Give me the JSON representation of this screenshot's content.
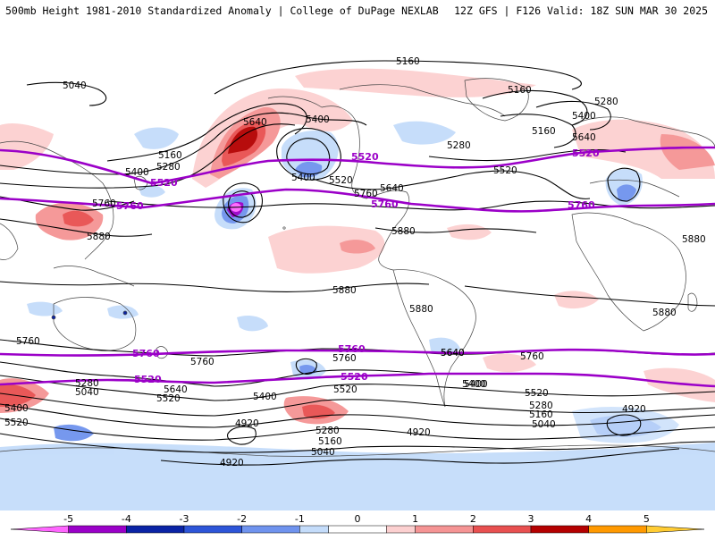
{
  "header": {
    "title": "500mb Height 1981-2010 Standardized Anomaly | College of DuPage NEXLAB",
    "run_info": "12Z GFS | F126 Valid: 18Z SUN MAR 30 2025"
  },
  "colors": {
    "climatology_line": "#9b00c8",
    "height_contour": "#000000",
    "coastline": "#444444"
  },
  "colorbar": {
    "ticks": [
      "-5",
      "-4",
      "-3",
      "-2",
      "-1",
      "0",
      "1",
      "2",
      "3",
      "4",
      "5"
    ],
    "bins": [
      {
        "range": [
          -6,
          -5
        ],
        "color": "#ff66ff"
      },
      {
        "range": [
          -5,
          -4
        ],
        "color": "#9a00c8"
      },
      {
        "range": [
          -4,
          -3
        ],
        "color": "#0a23a5"
      },
      {
        "range": [
          -3,
          -2
        ],
        "color": "#2d55d8"
      },
      {
        "range": [
          -2,
          -1
        ],
        "color": "#6f93ee"
      },
      {
        "range": [
          -1,
          -0.5
        ],
        "color": "#c4dcfa"
      },
      {
        "range": [
          -0.5,
          0.5
        ],
        "color": "#ffffff"
      },
      {
        "range": [
          0.5,
          1
        ],
        "color": "#fcd0d0"
      },
      {
        "range": [
          1,
          2
        ],
        "color": "#f59494"
      },
      {
        "range": [
          2,
          3
        ],
        "color": "#e85050"
      },
      {
        "range": [
          3,
          4
        ],
        "color": "#b40000"
      },
      {
        "range": [
          4,
          5
        ],
        "color": "#ff9900"
      },
      {
        "range": [
          5,
          6
        ],
        "color": "#ffcc33"
      }
    ]
  },
  "contour_labels": [
    "5160",
    "5040",
    "5160",
    "5280",
    "5400",
    "5640",
    "5400",
    "5160",
    "5640",
    "5160",
    "5280",
    "5400",
    "5520",
    "5400",
    "5760",
    "5640",
    "5280",
    "5520",
    "5880",
    "5760",
    "5880",
    "5880",
    "5880",
    "5880",
    "5880",
    "5760",
    "5760",
    "5640",
    "5760",
    "5280",
    "5040",
    "5520",
    "5640",
    "5400",
    "5520",
    "5400",
    "5280",
    "5160",
    "5040",
    "4920",
    "4920",
    "4920",
    "4920",
    "5040",
    "5160",
    "5280",
    "5400",
    "5520",
    "5640",
    "5760",
    "5400",
    "5520"
  ],
  "climatology_labels": [
    "5520",
    "5520",
    "5520",
    "5760",
    "5760",
    "5760",
    "5760",
    "5760",
    "5520",
    "5520"
  ]
}
